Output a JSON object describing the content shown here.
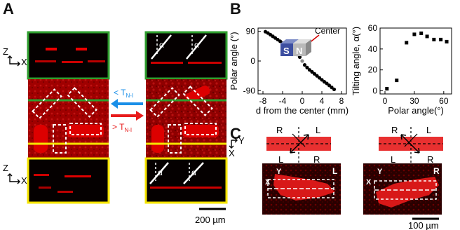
{
  "panels": {
    "a": {
      "letter": "A",
      "axis_z": "Z",
      "axis_x": "X",
      "arrow_left_label": "< T",
      "arrow_right_label": "> T",
      "subscript": "N-I",
      "alpha": "α",
      "scale_label": "200 µm",
      "colors": {
        "green": "#2e9e2e",
        "yellow": "#f5e400",
        "red": "#d40000",
        "blue": "#1a8fe8",
        "arrow_red": "#e81c1c"
      }
    },
    "b": {
      "letter": "B",
      "center_label": "Center",
      "magnet_s": "S",
      "magnet_n": "N"
    },
    "c": {
      "letter": "C",
      "axis_y": "Y",
      "axis_x": "X",
      "left_top_labels": [
        "R",
        "L"
      ],
      "left_bottom_labels": [
        "L",
        "R"
      ],
      "right_top_labels": [
        "R",
        "L"
      ],
      "right_bottom_labels": [
        "L",
        "R"
      ],
      "left_image_corner": "L",
      "right_image_corner": "R",
      "scale_label": "100 µm"
    }
  },
  "chart_data": [
    {
      "type": "scatter",
      "xlabel": "d from the center (mm)",
      "ylabel": "Polar angle (°)",
      "xticks": [
        -8,
        -4,
        0,
        4,
        8
      ],
      "yticks": [
        -90,
        0,
        90
      ],
      "xlim": [
        -9,
        9
      ],
      "ylim": [
        -100,
        100
      ],
      "x": [
        -7.5,
        -7,
        -6.5,
        -6,
        -5.5,
        -5,
        -4.5,
        -4,
        -3.5,
        -3,
        -2.5,
        -2,
        -1.5,
        -1,
        -0.5,
        0,
        0.5,
        1,
        1.5,
        2,
        2.5,
        3,
        3.5,
        4,
        4.5,
        5,
        5.5,
        6,
        6.5
      ],
      "y": [
        89,
        85,
        80,
        75,
        70,
        65,
        60,
        54,
        48,
        43,
        38,
        33,
        27,
        20,
        12,
        0,
        -12,
        -20,
        -27,
        -33,
        -39,
        -45,
        -51,
        -57,
        -63,
        -68,
        -74,
        -80,
        -86
      ]
    },
    {
      "type": "scatter",
      "xlabel": "Polar angle(°)",
      "ylabel": "Tilting angle, α(°)",
      "xticks": [
        0,
        30,
        60
      ],
      "yticks": [
        0,
        20,
        40,
        60
      ],
      "xlim": [
        -5,
        68
      ],
      "ylim": [
        -3,
        60
      ],
      "x": [
        2,
        12,
        22,
        30,
        37,
        43,
        50,
        57,
        63
      ],
      "y": [
        2,
        10,
        46,
        54,
        55,
        52,
        49,
        49,
        47
      ]
    }
  ]
}
